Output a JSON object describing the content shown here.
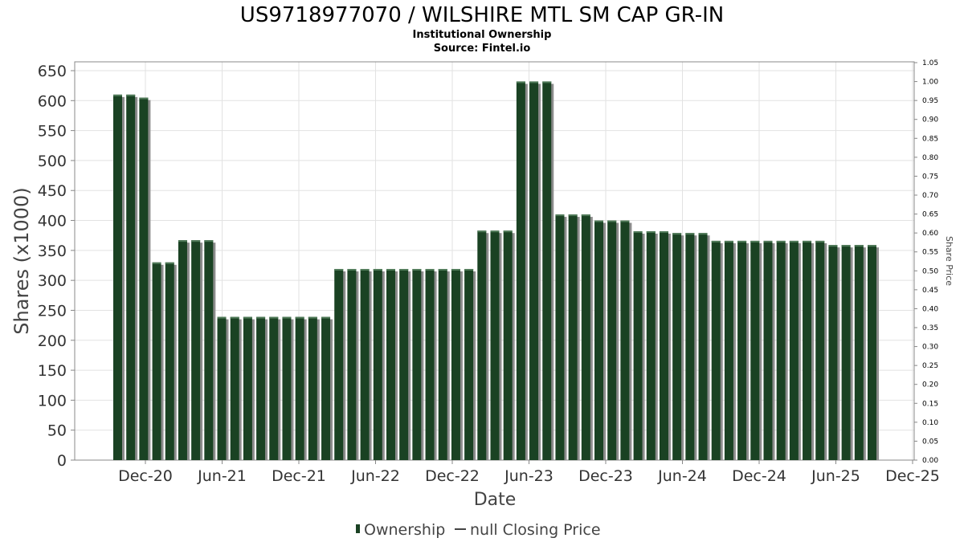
{
  "title": "US9718977070 / WILSHIRE MTL SM CAP GR-IN",
  "subtitle1": "Institutional Ownership",
  "subtitle2": "Source: Fintel.io",
  "chart_data": {
    "type": "bar",
    "xlabel": "Date",
    "ylabel": "Shares (x1000)",
    "y2label": "Share Price",
    "ylim": [
      0,
      650
    ],
    "y2lim": [
      0,
      1.05
    ],
    "y_ticks": [
      "0",
      "50",
      "100",
      "150",
      "200",
      "250",
      "300",
      "350",
      "400",
      "450",
      "500",
      "550",
      "600",
      "650"
    ],
    "y2_ticks": [
      "0.00",
      "0.05",
      "0.10",
      "0.15",
      "0.20",
      "0.25",
      "0.30",
      "0.35",
      "0.40",
      "0.45",
      "0.50",
      "0.55",
      "0.60",
      "0.65",
      "0.70",
      "0.75",
      "0.80",
      "0.85",
      "0.90",
      "0.95",
      "1.00",
      "1.05"
    ],
    "x_ticks": [
      "Dec-20",
      "Jun-21",
      "Dec-21",
      "Jun-22",
      "Dec-22",
      "Jun-23",
      "Dec-23",
      "Jun-24",
      "Dec-24",
      "Jun-25",
      "Dec-25"
    ],
    "grid": true,
    "legend": [
      "Ownership",
      "null Closing Price"
    ],
    "legend_position": "bottom",
    "series": [
      {
        "name": "Ownership",
        "color": "#1a4223",
        "values": [
          610,
          610,
          605,
          330,
          330,
          367,
          367,
          367,
          239,
          239,
          239,
          239,
          239,
          239,
          239,
          239,
          239,
          319,
          319,
          319,
          319,
          319,
          319,
          319,
          319,
          319,
          319,
          319,
          383,
          383,
          383,
          632,
          632,
          632,
          410,
          410,
          410,
          400,
          400,
          400,
          382,
          382,
          382,
          379,
          379,
          379,
          366,
          366,
          366,
          366,
          366,
          366,
          366,
          366,
          366,
          359,
          359,
          359,
          359
        ]
      }
    ]
  }
}
